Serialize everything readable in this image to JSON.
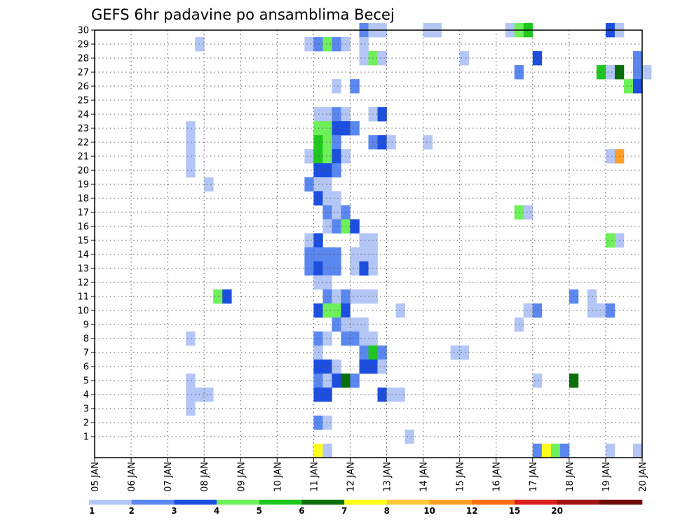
{
  "chart_data": {
    "type": "heatmap",
    "title": "GEFS 6hr padavine po ansamblima Becej",
    "xlabel": "",
    "ylabel": "",
    "x_ticks": [
      "05 JAN",
      "06 JAN",
      "07 JAN",
      "08 JAN",
      "09 JAN",
      "10 JAN",
      "11 JAN",
      "12 JAN",
      "13 JAN",
      "14 JAN",
      "15 JAN",
      "16 JAN",
      "17 JAN",
      "18 JAN",
      "19 JAN",
      "20 JAN"
    ],
    "x_range_days": [
      0,
      15
    ],
    "y_ticks": [
      1,
      2,
      3,
      4,
      5,
      6,
      7,
      8,
      9,
      10,
      11,
      12,
      13,
      14,
      15,
      16,
      17,
      18,
      19,
      20,
      21,
      22,
      23,
      24,
      25,
      26,
      27,
      28,
      29,
      30
    ],
    "y_range": [
      0,
      30
    ],
    "grid": true,
    "colorbar": {
      "placement": "bottom",
      "labels": [
        "1",
        "2",
        "3",
        "4",
        "5",
        "6",
        "7",
        "8",
        "10",
        "12",
        "15",
        "20"
      ],
      "colors": [
        "#b3c6f5",
        "#5a88f0",
        "#1c4fe0",
        "#6ef05a",
        "#1ec81e",
        "#0a6e0a",
        "#ffff1e",
        "#ffc83c",
        "#ffa028",
        "#ff6e14",
        "#dc1e1e",
        "#a01414",
        "#6e0a0a"
      ]
    },
    "note_units": "cells: [ensemble_member, time_step_index (6h steps from 05 JAN 00z), color_class_index]",
    "cells": [
      [
        30,
        29,
        2
      ],
      [
        30,
        30,
        1
      ],
      [
        30,
        31,
        1
      ],
      [
        30,
        36,
        1
      ],
      [
        30,
        37,
        1
      ],
      [
        30,
        45,
        1
      ],
      [
        30,
        46,
        4
      ],
      [
        30,
        47,
        5
      ],
      [
        30,
        56,
        3
      ],
      [
        30,
        57,
        1
      ],
      [
        29,
        11,
        1
      ],
      [
        29,
        23,
        1
      ],
      [
        29,
        24,
        2
      ],
      [
        29,
        25,
        4
      ],
      [
        29,
        26,
        2
      ],
      [
        29,
        27,
        1
      ],
      [
        29,
        29,
        1
      ],
      [
        28,
        29,
        1
      ],
      [
        28,
        30,
        4
      ],
      [
        28,
        31,
        1
      ],
      [
        28,
        40,
        1
      ],
      [
        28,
        48,
        3
      ],
      [
        28,
        59,
        2
      ],
      [
        27,
        46,
        2
      ],
      [
        27,
        55,
        5
      ],
      [
        27,
        56,
        1
      ],
      [
        27,
        57,
        6
      ],
      [
        27,
        59,
        2
      ],
      [
        27,
        60,
        1
      ],
      [
        26,
        26,
        1
      ],
      [
        26,
        28,
        2
      ],
      [
        26,
        58,
        4
      ],
      [
        26,
        59,
        3
      ],
      [
        24,
        24,
        1
      ],
      [
        24,
        25,
        1
      ],
      [
        24,
        26,
        2
      ],
      [
        24,
        27,
        1
      ],
      [
        24,
        30,
        1
      ],
      [
        24,
        31,
        3
      ],
      [
        23,
        10,
        1
      ],
      [
        23,
        24,
        4
      ],
      [
        23,
        25,
        4
      ],
      [
        23,
        26,
        3
      ],
      [
        23,
        27,
        3
      ],
      [
        23,
        28,
        2
      ],
      [
        22,
        10,
        1
      ],
      [
        22,
        24,
        5
      ],
      [
        22,
        25,
        4
      ],
      [
        22,
        26,
        2
      ],
      [
        22,
        30,
        2
      ],
      [
        22,
        31,
        3
      ],
      [
        22,
        32,
        1
      ],
      [
        22,
        36,
        1
      ],
      [
        21,
        10,
        1
      ],
      [
        21,
        23,
        1
      ],
      [
        21,
        24,
        5
      ],
      [
        21,
        25,
        4
      ],
      [
        21,
        26,
        3
      ],
      [
        21,
        27,
        1
      ],
      [
        21,
        56,
        1
      ],
      [
        21,
        57,
        9
      ],
      [
        20,
        10,
        1
      ],
      [
        20,
        24,
        3
      ],
      [
        20,
        25,
        3
      ],
      [
        20,
        26,
        2
      ],
      [
        19,
        12,
        1
      ],
      [
        19,
        23,
        2
      ],
      [
        19,
        24,
        1
      ],
      [
        19,
        25,
        1
      ],
      [
        18,
        24,
        3
      ],
      [
        18,
        25,
        1
      ],
      [
        18,
        26,
        1
      ],
      [
        17,
        25,
        2
      ],
      [
        17,
        26,
        1
      ],
      [
        17,
        27,
        2
      ],
      [
        17,
        46,
        4
      ],
      [
        17,
        47,
        1
      ],
      [
        16,
        25,
        1
      ],
      [
        16,
        26,
        2
      ],
      [
        16,
        27,
        4
      ],
      [
        16,
        28,
        3
      ],
      [
        15,
        23,
        1
      ],
      [
        15,
        24,
        3
      ],
      [
        15,
        29,
        1
      ],
      [
        15,
        30,
        1
      ],
      [
        15,
        56,
        4
      ],
      [
        15,
        57,
        1
      ],
      [
        14,
        23,
        2
      ],
      [
        14,
        24,
        2
      ],
      [
        14,
        25,
        2
      ],
      [
        14,
        26,
        2
      ],
      [
        14,
        28,
        1
      ],
      [
        14,
        29,
        1
      ],
      [
        14,
        30,
        1
      ],
      [
        13,
        23,
        2
      ],
      [
        13,
        24,
        3
      ],
      [
        13,
        25,
        2
      ],
      [
        13,
        26,
        2
      ],
      [
        13,
        28,
        1
      ],
      [
        13,
        29,
        3
      ],
      [
        13,
        30,
        1
      ],
      [
        12,
        24,
        1
      ],
      [
        12,
        25,
        1
      ],
      [
        11,
        13,
        4
      ],
      [
        11,
        14,
        3
      ],
      [
        11,
        25,
        2
      ],
      [
        11,
        26,
        1
      ],
      [
        11,
        27,
        2
      ],
      [
        11,
        28,
        1
      ],
      [
        11,
        29,
        1
      ],
      [
        11,
        30,
        1
      ],
      [
        11,
        52,
        2
      ],
      [
        11,
        54,
        1
      ],
      [
        10,
        24,
        3
      ],
      [
        10,
        25,
        4
      ],
      [
        10,
        26,
        4
      ],
      [
        10,
        27,
        3
      ],
      [
        10,
        33,
        1
      ],
      [
        10,
        47,
        1
      ],
      [
        10,
        48,
        2
      ],
      [
        10,
        54,
        1
      ],
      [
        10,
        55,
        1
      ],
      [
        10,
        56,
        2
      ],
      [
        9,
        26,
        2
      ],
      [
        9,
        27,
        1
      ],
      [
        9,
        28,
        1
      ],
      [
        9,
        29,
        1
      ],
      [
        9,
        46,
        1
      ],
      [
        8,
        10,
        1
      ],
      [
        8,
        24,
        2
      ],
      [
        8,
        25,
        1
      ],
      [
        8,
        27,
        2
      ],
      [
        8,
        28,
        2
      ],
      [
        8,
        29,
        1
      ],
      [
        8,
        30,
        1
      ],
      [
        7,
        24,
        1
      ],
      [
        7,
        29,
        2
      ],
      [
        7,
        30,
        5
      ],
      [
        7,
        31,
        2
      ],
      [
        7,
        39,
        1
      ],
      [
        7,
        40,
        1
      ],
      [
        6,
        24,
        3
      ],
      [
        6,
        25,
        3
      ],
      [
        6,
        26,
        1
      ],
      [
        6,
        29,
        3
      ],
      [
        6,
        30,
        3
      ],
      [
        6,
        31,
        1
      ],
      [
        5,
        10,
        1
      ],
      [
        5,
        24,
        2
      ],
      [
        5,
        25,
        1
      ],
      [
        5,
        26,
        3
      ],
      [
        5,
        27,
        6
      ],
      [
        5,
        28,
        2
      ],
      [
        5,
        48,
        1
      ],
      [
        5,
        52,
        6
      ],
      [
        4,
        10,
        1
      ],
      [
        4,
        11,
        1
      ],
      [
        4,
        12,
        1
      ],
      [
        4,
        24,
        3
      ],
      [
        4,
        25,
        3
      ],
      [
        4,
        31,
        3
      ],
      [
        4,
        32,
        1
      ],
      [
        4,
        33,
        1
      ],
      [
        3,
        10,
        1
      ],
      [
        2,
        24,
        2
      ],
      [
        2,
        25,
        1
      ],
      [
        1,
        34,
        1
      ],
      [
        0,
        24,
        7
      ],
      [
        0,
        25,
        1
      ],
      [
        0,
        48,
        2
      ],
      [
        0,
        49,
        7
      ],
      [
        0,
        50,
        4
      ],
      [
        0,
        51,
        2
      ],
      [
        0,
        56,
        1
      ],
      [
        0,
        59,
        1
      ]
    ]
  }
}
